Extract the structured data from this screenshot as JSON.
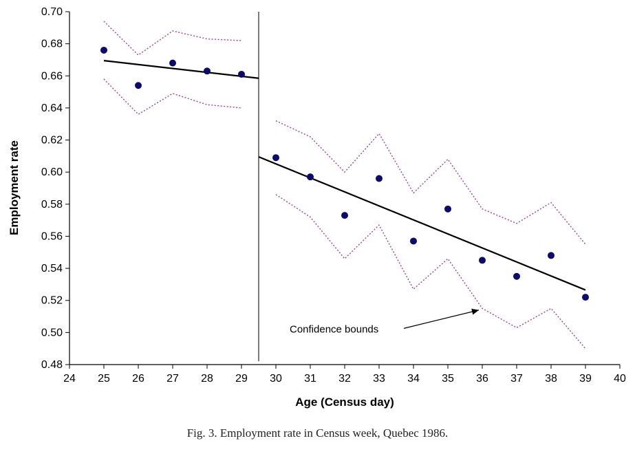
{
  "caption": "Fig. 3.  Employment rate in Census week, Quebec 1986.",
  "chart_data": {
    "type": "scatter",
    "xlabel": "Age (Census day)",
    "ylabel": "Employment rate",
    "xlim": [
      24,
      40
    ],
    "ylim": [
      0.48,
      0.7
    ],
    "xticks": [
      24,
      25,
      26,
      27,
      28,
      29,
      30,
      31,
      32,
      33,
      34,
      35,
      36,
      37,
      38,
      39,
      40
    ],
    "yticks": [
      "0.48",
      "0.50",
      "0.52",
      "0.54",
      "0.56",
      "0.58",
      "0.60",
      "0.62",
      "0.64",
      "0.66",
      "0.68",
      "0.70"
    ],
    "grid": false,
    "discontinuity_at": 29.5,
    "points": {
      "x": [
        25,
        26,
        27,
        28,
        29,
        30,
        31,
        32,
        33,
        34,
        35,
        36,
        37,
        38,
        39
      ],
      "y": [
        0.676,
        0.654,
        0.668,
        0.663,
        0.661,
        0.609,
        0.597,
        0.573,
        0.596,
        0.557,
        0.577,
        0.545,
        0.535,
        0.548,
        0.522
      ],
      "color": "#0b0b6e"
    },
    "fit_lines": [
      {
        "x": [
          25,
          29.5
        ],
        "y": [
          0.6695,
          0.6585
        ]
      },
      {
        "x": [
          29.5,
          39
        ],
        "y": [
          0.6095,
          0.5265
        ]
      }
    ],
    "upper_bound": [
      {
        "x": [
          25,
          26,
          27,
          28,
          29
        ],
        "y": [
          0.694,
          0.673,
          0.688,
          0.683,
          0.682
        ]
      },
      {
        "x": [
          30,
          31,
          32,
          33,
          34,
          35,
          36,
          37,
          38,
          39
        ],
        "y": [
          0.632,
          0.622,
          0.6,
          0.624,
          0.587,
          0.608,
          0.577,
          0.568,
          0.581,
          0.555
        ]
      }
    ],
    "lower_bound": [
      {
        "x": [
          25,
          26,
          27,
          28,
          29
        ],
        "y": [
          0.658,
          0.636,
          0.649,
          0.642,
          0.64
        ]
      },
      {
        "x": [
          30,
          31,
          32,
          33,
          34,
          35,
          36,
          37,
          38,
          39
        ],
        "y": [
          0.586,
          0.572,
          0.546,
          0.567,
          0.527,
          0.546,
          0.515,
          0.503,
          0.515,
          0.49
        ]
      }
    ],
    "bound_color": "#a0409a",
    "annotation": {
      "text": "Confidence bounds",
      "x": 30.4,
      "y": 0.5,
      "arrow_to": [
        35.9,
        0.514
      ]
    }
  }
}
